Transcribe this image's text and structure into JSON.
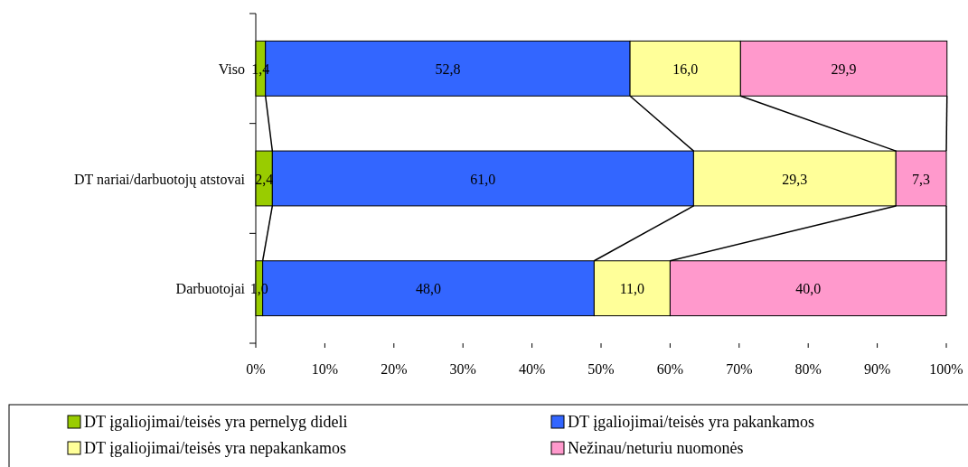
{
  "chart_data": {
    "type": "bar",
    "orientation": "horizontal",
    "stacked": true,
    "categories": [
      "Viso",
      "DT nariai/darbuotojų atstovai",
      "Darbuotojai"
    ],
    "series": [
      {
        "name": "DT įgaliojimai/teisės yra pernelyg dideli",
        "color": "#99cc00",
        "values": [
          1.4,
          2.4,
          1.0
        ],
        "value_labels": [
          "1,4",
          "2,4",
          "1,0"
        ]
      },
      {
        "name": "DT įgaliojimai/teisės yra pakankamos",
        "color": "#3366ff",
        "values": [
          52.8,
          61.0,
          48.0
        ],
        "value_labels": [
          "52,8",
          "61,0",
          "48,0"
        ]
      },
      {
        "name": "DT įgaliojimai/teisės yra nepakankamos",
        "color": "#ffff99",
        "values": [
          16.0,
          29.3,
          11.0
        ],
        "value_labels": [
          "16,0",
          "29,3",
          "11,0"
        ]
      },
      {
        "name": "Nežinau/neturiu nuomonės",
        "color": "#ff99cc",
        "values": [
          29.9,
          7.3,
          40.0
        ],
        "value_labels": [
          "29,9",
          "7,3",
          "40,0"
        ]
      }
    ],
    "xlim": [
      0,
      100
    ],
    "xticks": [
      {
        "value": 0,
        "label": "0%"
      },
      {
        "value": 10,
        "label": "10%"
      },
      {
        "value": 20,
        "label": "20%"
      },
      {
        "value": 30,
        "label": "30%"
      },
      {
        "value": 40,
        "label": "40%"
      },
      {
        "value": 50,
        "label": "50%"
      },
      {
        "value": 60,
        "label": "60%"
      },
      {
        "value": 70,
        "label": "70%"
      },
      {
        "value": 80,
        "label": "80%"
      },
      {
        "value": 90,
        "label": "90%"
      },
      {
        "value": 100,
        "label": "100%"
      }
    ],
    "legend": "bottom",
    "grid": false
  }
}
